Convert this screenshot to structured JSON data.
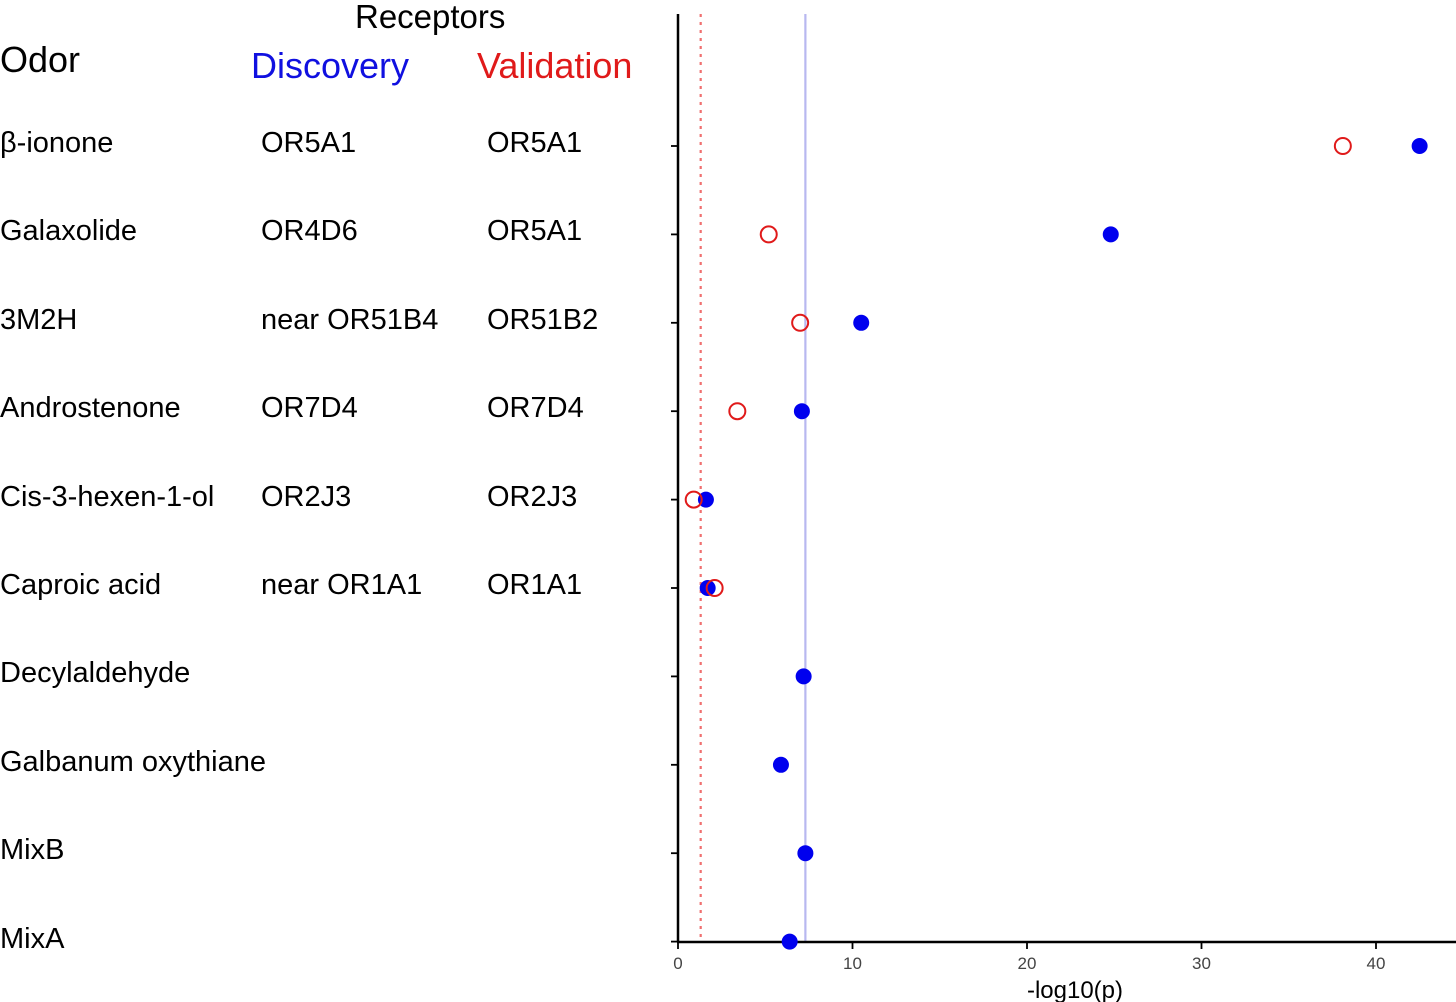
{
  "header": {
    "receptors": "Receptors",
    "odor": "Odor",
    "discovery": "Discovery",
    "validation": "Validation"
  },
  "colors": {
    "discovery": "#0000ee",
    "validation": "#e01a1a",
    "discovery_threshold_line": "#b8b8f0",
    "validation_threshold_line": "#f07070"
  },
  "rows": [
    {
      "odor": "β-ionone",
      "discovery": "OR5A1",
      "validation": "OR5A1"
    },
    {
      "odor": "Galaxolide",
      "discovery": "OR4D6",
      "validation": "OR5A1"
    },
    {
      "odor": "3M2H",
      "discovery": "near OR51B4",
      "validation": "OR51B2"
    },
    {
      "odor": "Androstenone",
      "discovery": "OR7D4",
      "validation": "OR7D4"
    },
    {
      "odor": "Cis-3-hexen-1-ol",
      "discovery": "OR2J3",
      "validation": "OR2J3"
    },
    {
      "odor": "Caproic acid",
      "discovery": "near OR1A1",
      "validation": "OR1A1"
    },
    {
      "odor": "Decylaldehyde",
      "discovery": "",
      "validation": ""
    },
    {
      "odor": "Galbanum oxythiane",
      "discovery": "",
      "validation": ""
    },
    {
      "odor": "MixB",
      "discovery": "",
      "validation": ""
    },
    {
      "odor": "MixA",
      "discovery": "",
      "validation": ""
    }
  ],
  "chart_data": {
    "type": "scatter",
    "xlabel": "-log10(p)",
    "ylabel": "",
    "xlim": [
      0,
      44
    ],
    "x_ticks": [
      0,
      10,
      20,
      30,
      40
    ],
    "categories": [
      "β-ionone",
      "Galaxolide",
      "3M2H",
      "Androstenone",
      "Cis-3-hexen-1-ol",
      "Caproic acid",
      "Decylaldehyde",
      "Galbanum oxythiane",
      "MixB",
      "MixA"
    ],
    "series": [
      {
        "name": "Discovery",
        "marker": "filled-circle",
        "values": [
          42.5,
          24.8,
          10.5,
          7.1,
          1.6,
          1.7,
          7.2,
          5.9,
          7.3,
          6.4
        ]
      },
      {
        "name": "Validation",
        "marker": "open-circle",
        "values": [
          38.1,
          5.2,
          7.0,
          3.4,
          0.9,
          2.1,
          null,
          null,
          null,
          null
        ]
      }
    ],
    "reference_lines": [
      {
        "series": "Discovery",
        "x": 7.3,
        "style": "solid"
      },
      {
        "series": "Validation",
        "x": 1.3,
        "style": "dotted"
      }
    ],
    "grid": false
  }
}
